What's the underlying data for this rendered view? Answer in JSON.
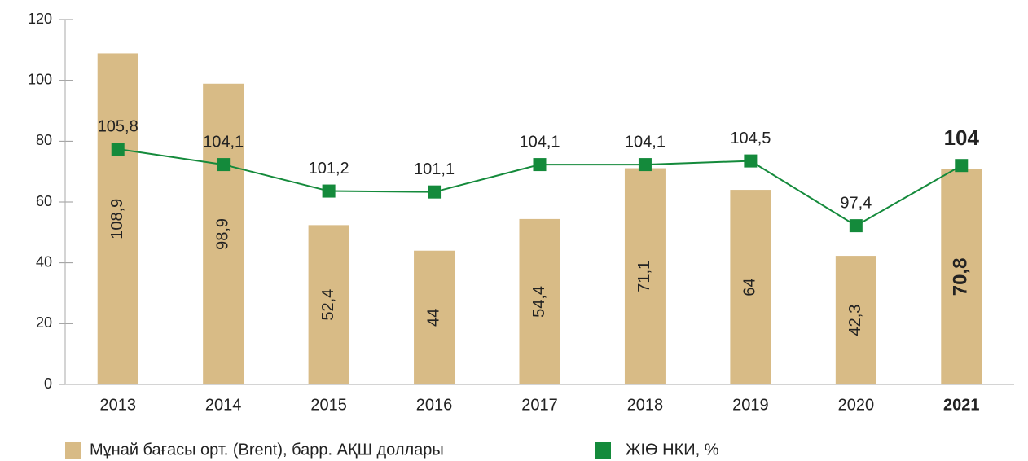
{
  "chart_data": {
    "type": "bar_line",
    "categories": [
      "2013",
      "2014",
      "2015",
      "2016",
      "2017",
      "2018",
      "2019",
      "2020",
      "2021"
    ],
    "highlight": "2021",
    "ylim": [
      0,
      120
    ],
    "yticks": [
      0,
      20,
      40,
      60,
      80,
      100,
      120
    ],
    "y2lim": [
      80,
      120
    ],
    "series": [
      {
        "name": "Мұнай бағасы орт. (Brent), барр. АҚШ доллары",
        "type": "bar",
        "color": "#d8bb86",
        "values": [
          108.9,
          98.9,
          52.4,
          44,
          54.4,
          71.1,
          64,
          42.3,
          70.8
        ],
        "value_labels": [
          "108,9",
          "98,9",
          "52,4",
          "44",
          "54,4",
          "71,1",
          "64",
          "42,3",
          "70,8"
        ]
      },
      {
        "name": "ЖІӨ НКИ, %",
        "type": "line",
        "axis": "y2",
        "color": "#148a3b",
        "values": [
          105.8,
          104.1,
          101.2,
          101.1,
          104.1,
          104.1,
          104.5,
          97.4,
          104
        ],
        "value_labels": [
          "105,8",
          "104,1",
          "101,2",
          "101,1",
          "104,1",
          "104,1",
          "104,5",
          "97,4",
          "104"
        ]
      }
    ]
  }
}
